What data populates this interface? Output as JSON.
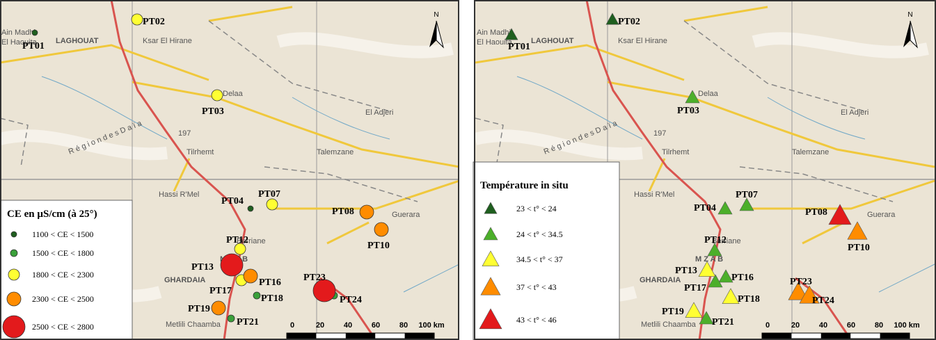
{
  "basemap_labels": [
    "LAGHOUAT",
    "Ksar El Hirane",
    "Ain Madhi",
    "El Haouita",
    "Delaa",
    "Tilrhemt",
    "Hassi R'Mel",
    "Berriane",
    "Guerara",
    "M Z A B",
    "GHARDAIA",
    "Metlili Chaamba",
    "R é g i o n   d e s   D a ï a",
    "197",
    "Talemzane",
    "El Adjeri"
  ],
  "scale_bar": {
    "labels": [
      "0",
      "20",
      "40",
      "60",
      "80",
      "100 km"
    ]
  },
  "north": "N",
  "panels": [
    {
      "marker": "circle",
      "legend": {
        "title": "CE en µS/cm (à 25°)",
        "classes": [
          {
            "label": "1100 < CE < 1500",
            "color": "#1f5f1f",
            "points": [
              "PT01",
              "PT04"
            ]
          },
          {
            "label": "1500 < CE < 1800",
            "color": "#3aa03a",
            "points": [
              "PT18",
              "PT24",
              "PT21"
            ]
          },
          {
            "label": "1800 < CE < 2300",
            "color": "#ffff33",
            "points": [
              "PT02",
              "PT03",
              "PT07",
              "PT12",
              "PT17"
            ]
          },
          {
            "label": "2300 < CE < 2500",
            "color": "#ff8c00",
            "points": [
              "PT08",
              "PT10",
              "PT16",
              "PT19"
            ]
          },
          {
            "label": "2500 < CE < 2800",
            "color": "#e31a1c",
            "points": [
              "PT13",
              "PT23"
            ]
          }
        ]
      }
    },
    {
      "marker": "triangle",
      "legend": {
        "title": "Température  in situ",
        "classes": [
          {
            "label": "23 < t° < 24",
            "color": "#1f5f1f",
            "points": [
              "PT01",
              "PT02"
            ]
          },
          {
            "label": "24 < t° < 34.5",
            "color": "#4caf2a",
            "points": [
              "PT03",
              "PT04",
              "PT07",
              "PT12",
              "PT16",
              "PT17",
              "PT21"
            ]
          },
          {
            "label": "34.5 < t° < 37",
            "color": "#ffff33",
            "points": [
              "PT13",
              "PT18",
              "PT19"
            ]
          },
          {
            "label": "37 < t° < 43",
            "color": "#ff8c00",
            "points": [
              "PT10",
              "PT23",
              "PT24"
            ]
          },
          {
            "label": "43 < t° < 46",
            "color": "#e31a1c",
            "points": [
              "PT08"
            ]
          }
        ]
      }
    }
  ]
}
